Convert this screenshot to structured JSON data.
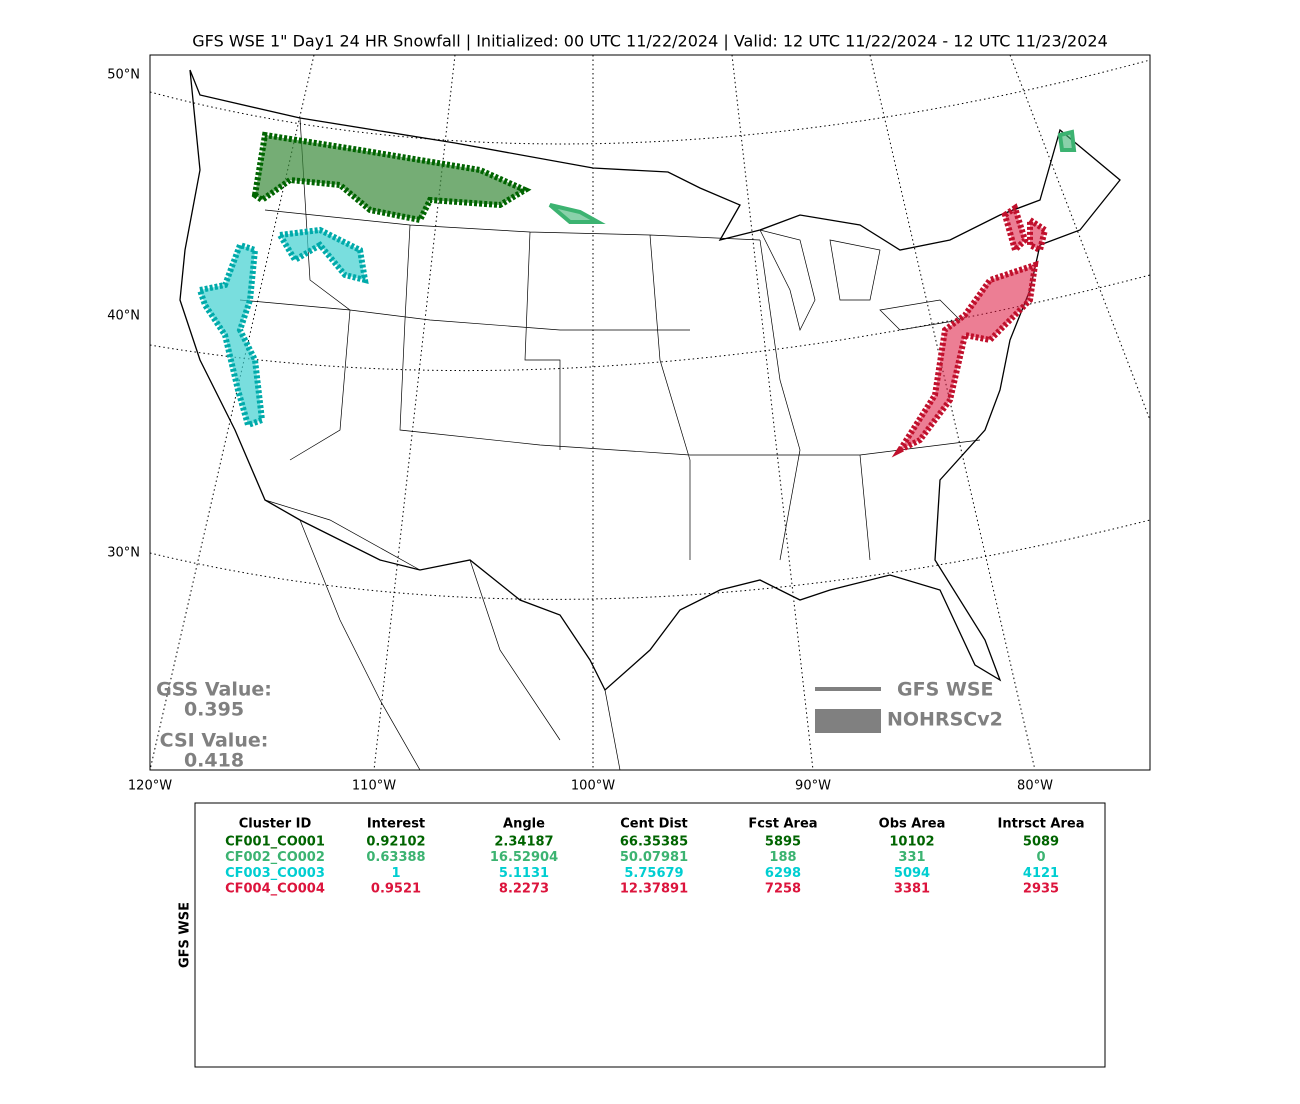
{
  "title": "GFS WSE 1\" Day1 24 HR Snowfall | Initialized: 00 UTC 11/22/2024 | Valid: 12 UTC 11/22/2024 - 12 UTC 11/23/2024",
  "map": {
    "lat_labels": [
      "50°N",
      "40°N",
      "30°N"
    ],
    "lon_labels": [
      "120°W",
      "110°W",
      "100°W",
      "90°W",
      "80°W"
    ],
    "scores": {
      "gss_label": "GSS Value:",
      "gss_value": "0.395",
      "csi_label": "CSI Value:",
      "csi_value": "0.418"
    },
    "legend": [
      "GFS WSE",
      "NOHRSCv2"
    ]
  },
  "table": {
    "side_label": "GFS WSE",
    "header": [
      "Cluster ID",
      "Interest",
      "Angle",
      "Cent Dist",
      "Fcst Area",
      "Obs Area",
      "Intrsct Area"
    ],
    "rows": [
      {
        "color": "#006400",
        "cells": [
          "CF001_CO001",
          "0.92102",
          "2.34187",
          "66.35385",
          "5895",
          "10102",
          "5089"
        ]
      },
      {
        "color": "#3cb371",
        "cells": [
          "CF002_CO002",
          "0.63388",
          "16.52904",
          "50.07981",
          "188",
          "331",
          "0"
        ]
      },
      {
        "color": "#00ced1",
        "cells": [
          "CF003_CO003",
          "1",
          "5.1131",
          "5.75679",
          "6298",
          "5094",
          "4121"
        ]
      },
      {
        "color": "#dc143c",
        "cells": [
          "CF004_CO004",
          "0.9521",
          "8.2273",
          "12.37891",
          "7258",
          "3381",
          "2935"
        ]
      }
    ]
  }
}
